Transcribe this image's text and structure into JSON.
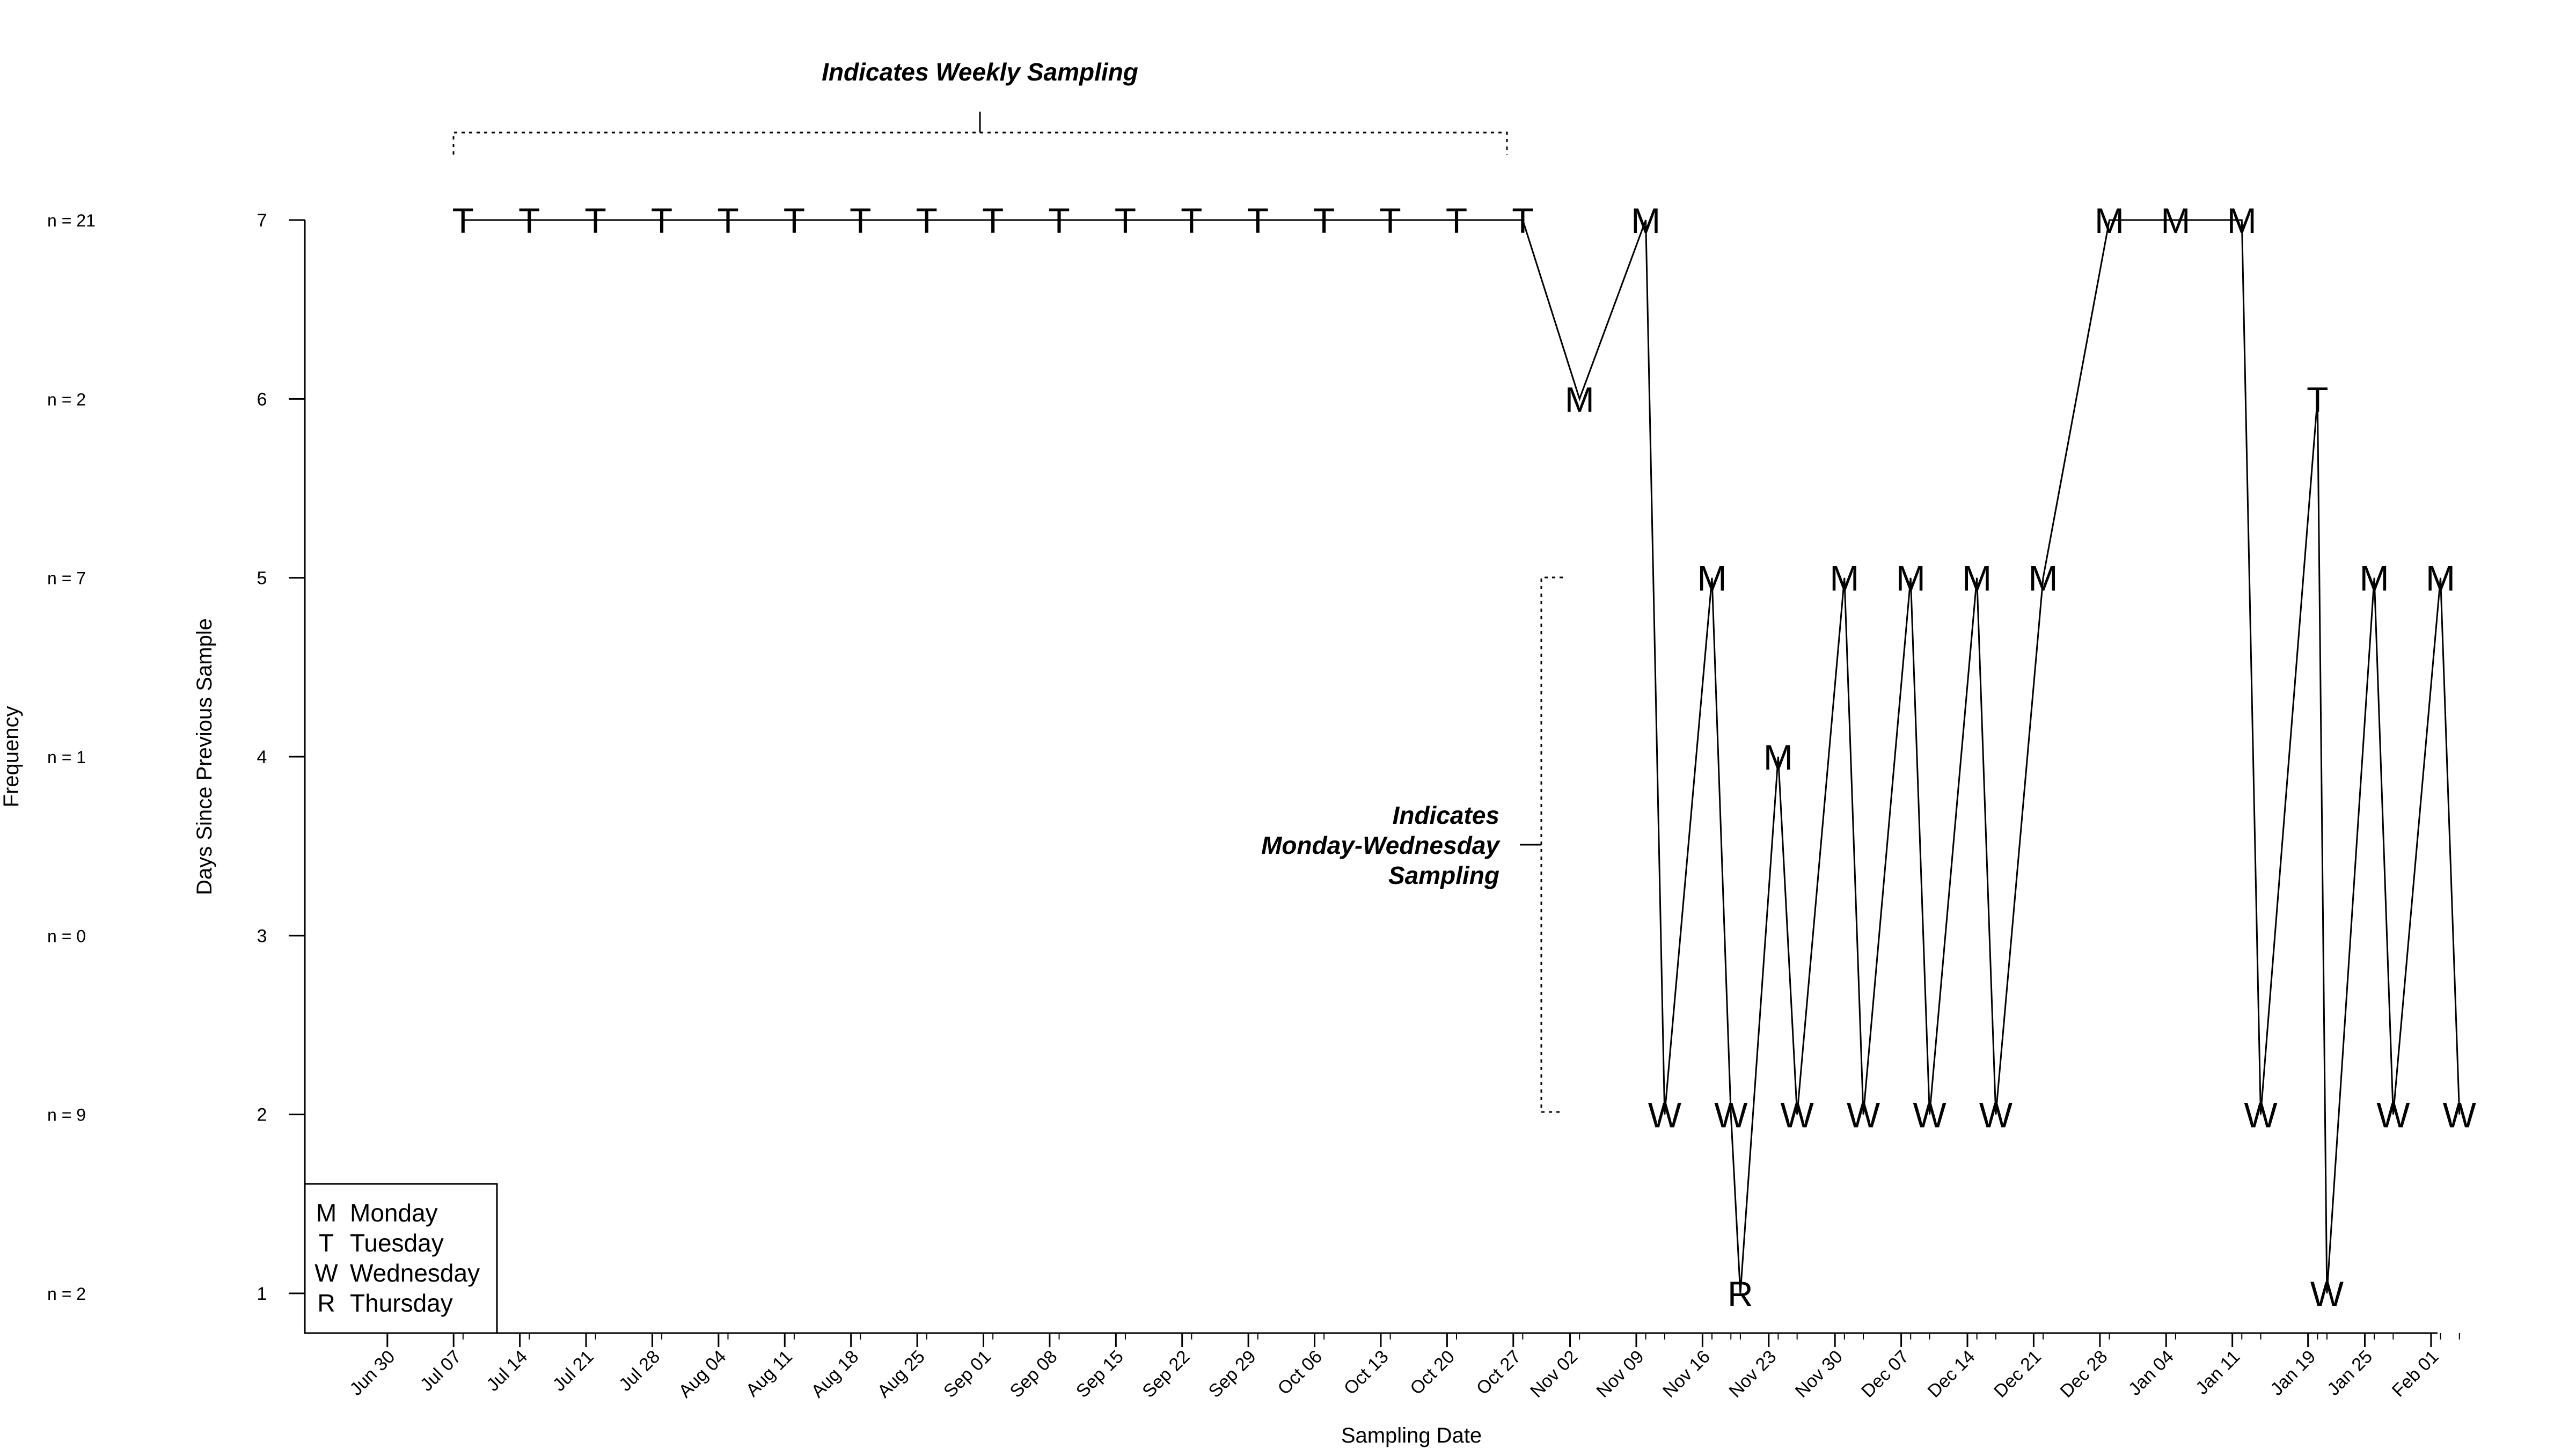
{
  "chart_data": {
    "type": "line",
    "title": "",
    "xlabel": "Sampling Date",
    "ylabel": "Days Since Previous Sample",
    "right_axis_label": "Frequency",
    "ylim": [
      1,
      7
    ],
    "yticks": [
      1,
      2,
      3,
      4,
      5,
      6,
      7
    ],
    "frequency_labels": [
      {
        "y": 7,
        "label": "n = 21"
      },
      {
        "y": 6,
        "label": "n = 2"
      },
      {
        "y": 5,
        "label": "n = 7"
      },
      {
        "y": 4,
        "label": "n = 1"
      },
      {
        "y": 3,
        "label": "n = 0"
      },
      {
        "y": 2,
        "label": "n = 9"
      },
      {
        "y": 1,
        "label": "n = 2"
      }
    ],
    "x_tick_labels": [
      "Jun 30",
      "Jul 07",
      "Jul 14",
      "Jul 21",
      "Jul 28",
      "Aug 04",
      "Aug 11",
      "Aug 18",
      "Aug 25",
      "Sep 01",
      "Sep 08",
      "Sep 15",
      "Sep 22",
      "Sep 29",
      "Oct 06",
      "Oct 13",
      "Oct 20",
      "Oct 27",
      "Nov 02",
      "Nov 09",
      "Nov 16",
      "Nov 23",
      "Nov 30",
      "Dec 07",
      "Dec 14",
      "Dec 21",
      "Dec 28",
      "Jan 04",
      "Jan 11",
      "Jan 19",
      "Jan 25",
      "Feb 01"
    ],
    "series": [
      {
        "points": [
          {
            "date": "Jul 08",
            "days": 7,
            "label": "T"
          },
          {
            "date": "Jul 15",
            "days": 7,
            "label": "T"
          },
          {
            "date": "Jul 22",
            "days": 7,
            "label": "T"
          },
          {
            "date": "Jul 29",
            "days": 7,
            "label": "T"
          },
          {
            "date": "Aug 05",
            "days": 7,
            "label": "T"
          },
          {
            "date": "Aug 12",
            "days": 7,
            "label": "T"
          },
          {
            "date": "Aug 19",
            "days": 7,
            "label": "T"
          },
          {
            "date": "Aug 26",
            "days": 7,
            "label": "T"
          },
          {
            "date": "Sep 02",
            "days": 7,
            "label": "T"
          },
          {
            "date": "Sep 09",
            "days": 7,
            "label": "T"
          },
          {
            "date": "Sep 16",
            "days": 7,
            "label": "T"
          },
          {
            "date": "Sep 23",
            "days": 7,
            "label": "T"
          },
          {
            "date": "Sep 30",
            "days": 7,
            "label": "T"
          },
          {
            "date": "Oct 07",
            "days": 7,
            "label": "T"
          },
          {
            "date": "Oct 14",
            "days": 7,
            "label": "T"
          },
          {
            "date": "Oct 21",
            "days": 7,
            "label": "T"
          },
          {
            "date": "Oct 28",
            "days": 7,
            "label": "T"
          },
          {
            "date": "Nov 03",
            "days": 6,
            "label": "M"
          },
          {
            "date": "Nov 10",
            "days": 7,
            "label": "M"
          },
          {
            "date": "Nov 12",
            "days": 2,
            "label": "W"
          },
          {
            "date": "Nov 17",
            "days": 5,
            "label": "M"
          },
          {
            "date": "Nov 19",
            "days": 2,
            "label": "W"
          },
          {
            "date": "Nov 20",
            "days": 1,
            "label": "R"
          },
          {
            "date": "Nov 24",
            "days": 4,
            "label": "M"
          },
          {
            "date": "Nov 26",
            "days": 2,
            "label": "W"
          },
          {
            "date": "Dec 01",
            "days": 5,
            "label": "M"
          },
          {
            "date": "Dec 03",
            "days": 2,
            "label": "W"
          },
          {
            "date": "Dec 08",
            "days": 5,
            "label": "M"
          },
          {
            "date": "Dec 10",
            "days": 2,
            "label": "W"
          },
          {
            "date": "Dec 15",
            "days": 5,
            "label": "M"
          },
          {
            "date": "Dec 17",
            "days": 2,
            "label": "W"
          },
          {
            "date": "Dec 22",
            "days": 5,
            "label": "M"
          },
          {
            "date": "Dec 29",
            "days": 7,
            "label": "M"
          },
          {
            "date": "Jan 05",
            "days": 7,
            "label": "M"
          },
          {
            "date": "Jan 12",
            "days": 7,
            "label": "M"
          },
          {
            "date": "Jan 14",
            "days": 2,
            "label": "W"
          },
          {
            "date": "Jan 20",
            "days": 6,
            "label": "T"
          },
          {
            "date": "Jan 21",
            "days": 1,
            "label": "W"
          },
          {
            "date": "Jan 26",
            "days": 5,
            "label": "M"
          },
          {
            "date": "Jan 28",
            "days": 2,
            "label": "W"
          },
          {
            "date": "Feb 02",
            "days": 5,
            "label": "M"
          },
          {
            "date": "Feb 04",
            "days": 2,
            "label": "W"
          }
        ]
      }
    ],
    "annotations": {
      "weekly": "Indicates Weekly Sampling",
      "monwed": [
        "Indicates",
        "Monday-Wednesday",
        "Sampling"
      ]
    },
    "legend": {
      "placement": "bottom-left",
      "items": [
        {
          "key": "M",
          "label": "Monday"
        },
        {
          "key": "T",
          "label": "Tuesday"
        },
        {
          "key": "W",
          "label": "Wednesday"
        },
        {
          "key": "R",
          "label": "Thursday"
        }
      ]
    },
    "grid": false
  }
}
